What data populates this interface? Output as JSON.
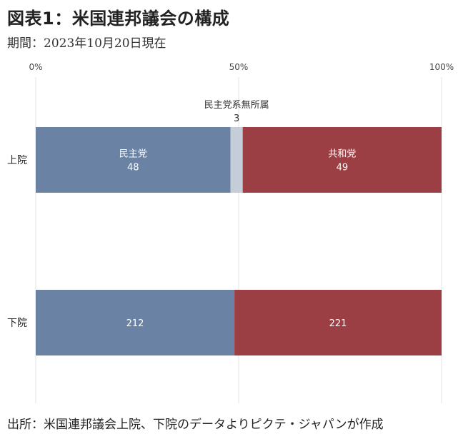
{
  "title": "図表1：米国連邦議会の構成",
  "subtitle": "期間：2023年10月20日現在",
  "footer": "出所：米国連邦議会上院、下院のデータよりピクテ・ジャパンが作成",
  "chart_data": {
    "type": "bar",
    "orientation": "horizontal",
    "stacked": true,
    "normalized": true,
    "categories": [
      "上院",
      "下院"
    ],
    "series": [
      {
        "key": "dem",
        "name": "民主党",
        "color": "#6a82a3",
        "values": [
          48,
          212
        ]
      },
      {
        "key": "ind",
        "name": "民主党系無所属",
        "color": "#c5cdd9",
        "values": [
          3,
          0
        ]
      },
      {
        "key": "rep",
        "name": "共和党",
        "color": "#9c3f45",
        "values": [
          49,
          221
        ]
      }
    ],
    "data_labels": [
      {
        "category": "上院",
        "series": "dem",
        "lines": [
          "民主党",
          "48"
        ],
        "placement": "inside"
      },
      {
        "category": "上院",
        "series": "ind",
        "lines": [
          "民主党系無所属",
          "3"
        ],
        "placement": "above"
      },
      {
        "category": "上院",
        "series": "rep",
        "lines": [
          "共和党",
          "49"
        ],
        "placement": "inside"
      },
      {
        "category": "下院",
        "series": "dem",
        "lines": [
          "212"
        ],
        "placement": "inside"
      },
      {
        "category": "下院",
        "series": "rep",
        "lines": [
          "221"
        ],
        "placement": "inside"
      }
    ],
    "x_ticks": [
      "0%",
      "50%",
      "100%"
    ],
    "xlim": [
      0,
      100
    ],
    "grid": true,
    "axis_position": "top"
  }
}
